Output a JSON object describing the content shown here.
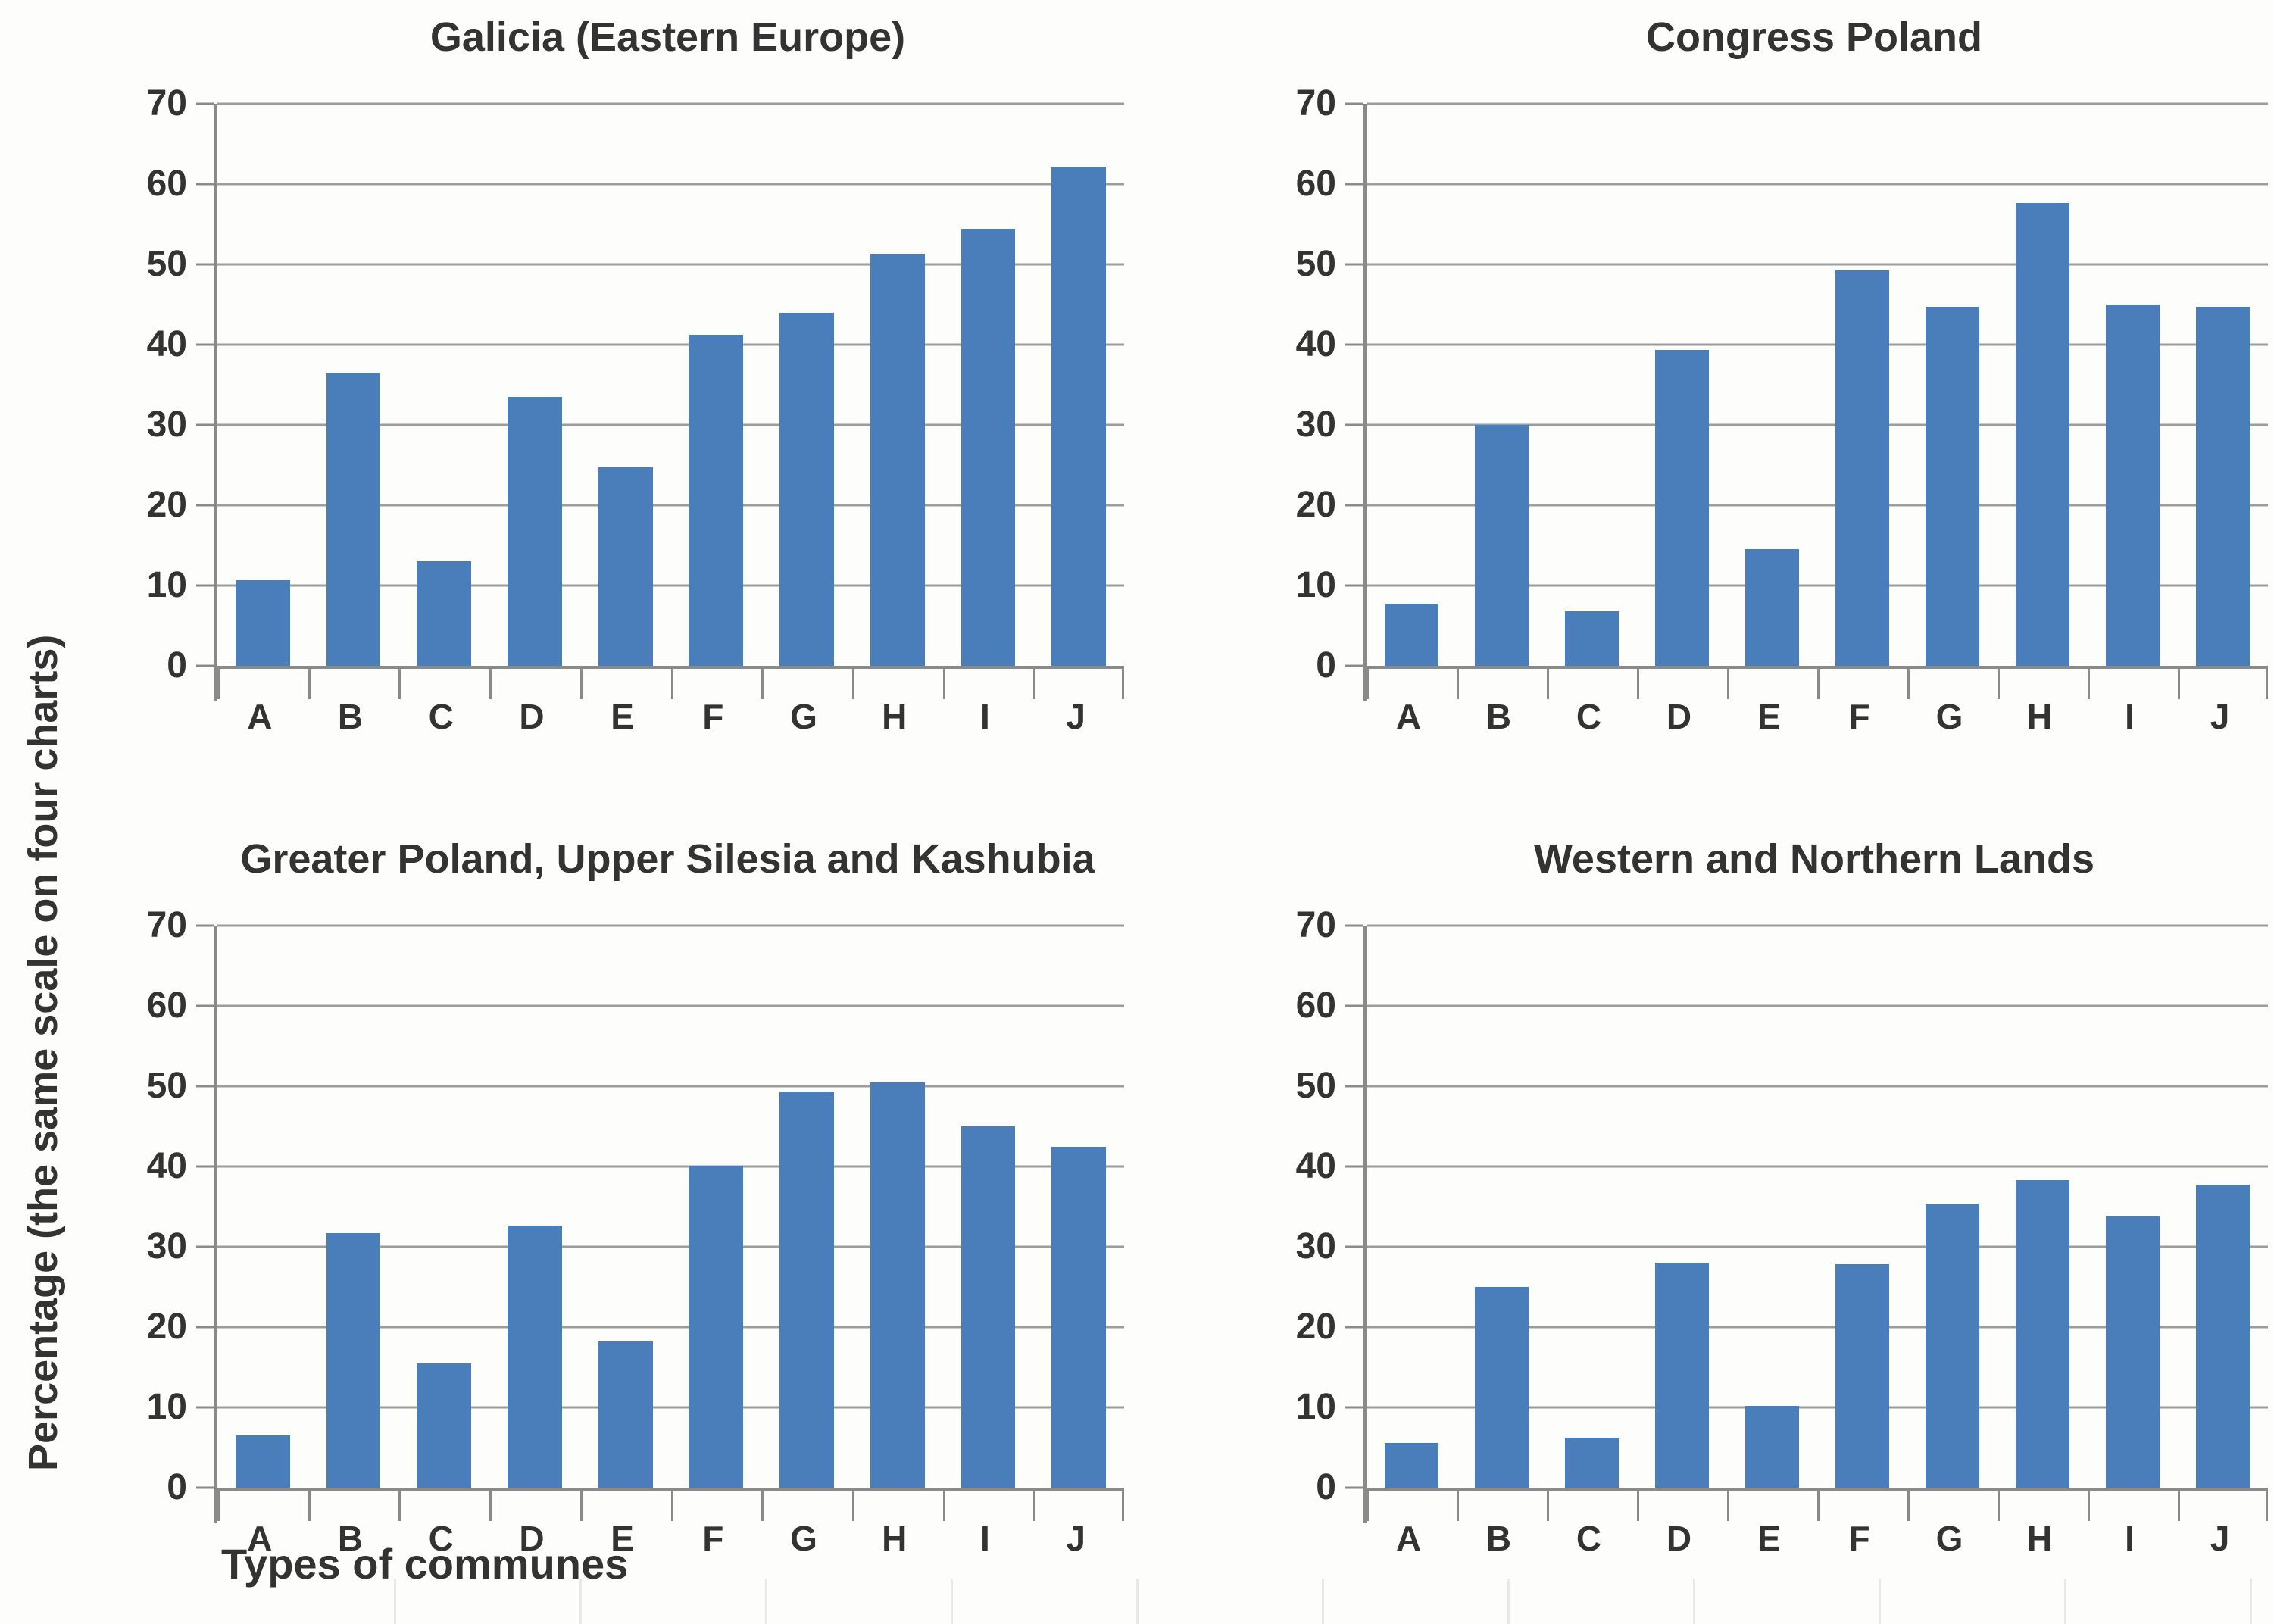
{
  "figure": {
    "y_axis_title": "Percentage (the same scale on four charts)",
    "x_axis_title": "Types of communes",
    "colors": {
      "bar": "#4a7ebb",
      "gridline": "#9c9c9c",
      "axis": "#8a8a8a",
      "text": "#333333",
      "faint_tick": "#e7e7e7"
    }
  },
  "chart_data": [
    {
      "type": "bar",
      "title": "Galicia (Eastern Europe)",
      "panel": "top-left",
      "categories": [
        "A",
        "B",
        "C",
        "D",
        "E",
        "F",
        "G",
        "H",
        "I",
        "J"
      ],
      "values": [
        10.7,
        36.5,
        13.0,
        33.5,
        24.7,
        41.2,
        44.0,
        51.3,
        54.4,
        62.2
      ],
      "ylim": [
        0,
        70
      ],
      "yticks": [
        0,
        10,
        20,
        30,
        40,
        50,
        60,
        70
      ],
      "grid": true,
      "legend": false
    },
    {
      "type": "bar",
      "title": "Congress Poland",
      "panel": "top-right",
      "categories": [
        "A",
        "B",
        "C",
        "D",
        "E",
        "F",
        "G",
        "H",
        "I",
        "J"
      ],
      "values": [
        7.7,
        30.0,
        6.8,
        39.3,
        14.5,
        49.2,
        44.7,
        57.6,
        45.0,
        44.7
      ],
      "ylim": [
        0,
        70
      ],
      "yticks": [
        0,
        10,
        20,
        30,
        40,
        50,
        60,
        70
      ],
      "grid": true,
      "legend": false
    },
    {
      "type": "bar",
      "title": "Greater Poland, Upper Silesia and Kashubia",
      "panel": "bottom-left",
      "categories": [
        "A",
        "B",
        "C",
        "D",
        "E",
        "F",
        "G",
        "H",
        "I",
        "J"
      ],
      "values": [
        6.5,
        31.7,
        15.5,
        32.6,
        18.2,
        40.1,
        49.3,
        50.5,
        45.0,
        42.5
      ],
      "ylim": [
        0,
        70
      ],
      "yticks": [
        0,
        10,
        20,
        30,
        40,
        50,
        60,
        70
      ],
      "grid": true,
      "legend": false
    },
    {
      "type": "bar",
      "title": "Western and Northern Lands",
      "panel": "bottom-right",
      "categories": [
        "A",
        "B",
        "C",
        "D",
        "E",
        "F",
        "G",
        "H",
        "I",
        "J"
      ],
      "values": [
        5.6,
        25.0,
        6.2,
        28.0,
        10.2,
        27.8,
        35.3,
        38.3,
        33.8,
        37.7
      ],
      "ylim": [
        0,
        70
      ],
      "yticks": [
        0,
        10,
        20,
        30,
        40,
        50,
        60,
        70
      ],
      "grid": true,
      "legend": false
    }
  ]
}
